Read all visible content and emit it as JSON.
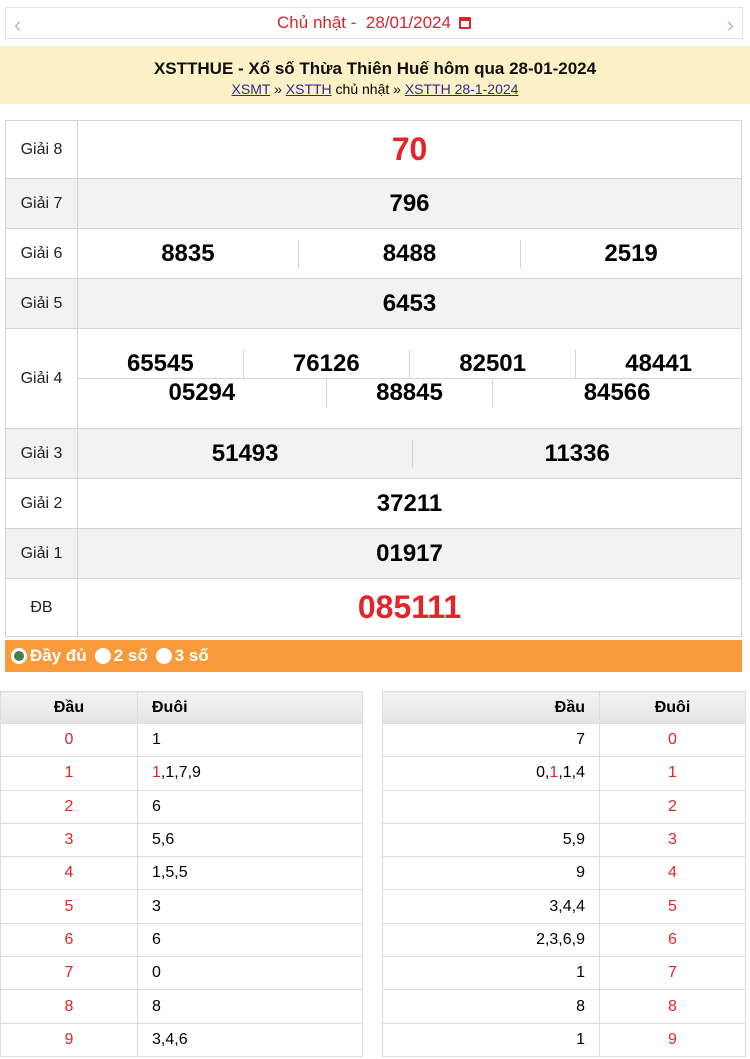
{
  "nav": {
    "prev_icon": "chevron-left-icon",
    "next_icon": "chevron-right-icon",
    "date_label": "Chủ nhật -  28/01/2024",
    "calendar_icon": "calendar-icon"
  },
  "banner": {
    "title": "XSTTHUE - Xổ số Thừa Thiên Huế hôm qua 28-01-2024",
    "crumb1": "XSMT",
    "sep1": " » ",
    "crumb2": "XSTTH",
    "mid": " chủ nhật » ",
    "crumb3": "XSTTH 28-1-2024"
  },
  "prizes": [
    {
      "label": "Giải 8",
      "numbers": [
        "70"
      ],
      "red": true
    },
    {
      "label": "Giải 7",
      "numbers": [
        "796"
      ]
    },
    {
      "label": "Giải 6",
      "numbers": [
        "8835",
        "8488",
        "2519"
      ]
    },
    {
      "label": "Giải 5",
      "numbers": [
        "6453"
      ]
    },
    {
      "label": "Giải 4",
      "row1": [
        "65545",
        "76126",
        "82501",
        "48441"
      ],
      "row2": [
        "05294",
        "88845",
        "84566"
      ]
    },
    {
      "label": "Giải 3",
      "numbers": [
        "51493",
        "11336"
      ]
    },
    {
      "label": "Giải 2",
      "numbers": [
        "37211"
      ]
    },
    {
      "label": "Giải 1",
      "numbers": [
        "01917"
      ]
    },
    {
      "label": "ĐB",
      "numbers": [
        "085111"
      ],
      "red": true
    }
  ],
  "options": {
    "items": [
      "Đầy đủ",
      "2 số",
      "3 số"
    ],
    "selected": "Đầy đủ"
  },
  "colors": {
    "accent_red": "#e0262b",
    "orange": "#f99a3a",
    "banner": "#fcf1c6"
  },
  "dau_table": {
    "headers": [
      "Đầu",
      "Đuôi"
    ],
    "rows": [
      {
        "k": "0",
        "v": [
          {
            "t": "1"
          }
        ]
      },
      {
        "k": "1",
        "v": [
          {
            "t": "1",
            "hl": true
          },
          {
            "t": ",1,7,9"
          }
        ]
      },
      {
        "k": "2",
        "v": [
          {
            "t": "6"
          }
        ]
      },
      {
        "k": "3",
        "v": [
          {
            "t": "5,6"
          }
        ]
      },
      {
        "k": "4",
        "v": [
          {
            "t": "1,5,5"
          }
        ]
      },
      {
        "k": "5",
        "v": [
          {
            "t": "3"
          }
        ]
      },
      {
        "k": "6",
        "v": [
          {
            "t": "6"
          }
        ]
      },
      {
        "k": "7",
        "v": [
          {
            "t": "0"
          }
        ]
      },
      {
        "k": "8",
        "v": [
          {
            "t": "8"
          }
        ]
      },
      {
        "k": "9",
        "v": [
          {
            "t": "3,4,6"
          }
        ]
      }
    ]
  },
  "duoi_table": {
    "headers": [
      "Đầu",
      "Đuôi"
    ],
    "rows": [
      {
        "k": "0",
        "v": [
          {
            "t": "7"
          }
        ]
      },
      {
        "k": "1",
        "v": [
          {
            "t": "0,"
          },
          {
            "t": "1",
            "hl": true
          },
          {
            "t": ",1,4"
          }
        ]
      },
      {
        "k": "2",
        "v": []
      },
      {
        "k": "3",
        "v": [
          {
            "t": "5,9"
          }
        ]
      },
      {
        "k": "4",
        "v": [
          {
            "t": "9"
          }
        ]
      },
      {
        "k": "5",
        "v": [
          {
            "t": "3,4,4"
          }
        ]
      },
      {
        "k": "6",
        "v": [
          {
            "t": "2,3,6,9"
          }
        ]
      },
      {
        "k": "7",
        "v": [
          {
            "t": "1"
          }
        ]
      },
      {
        "k": "8",
        "v": [
          {
            "t": "8"
          }
        ]
      },
      {
        "k": "9",
        "v": [
          {
            "t": "1"
          }
        ]
      }
    ]
  }
}
